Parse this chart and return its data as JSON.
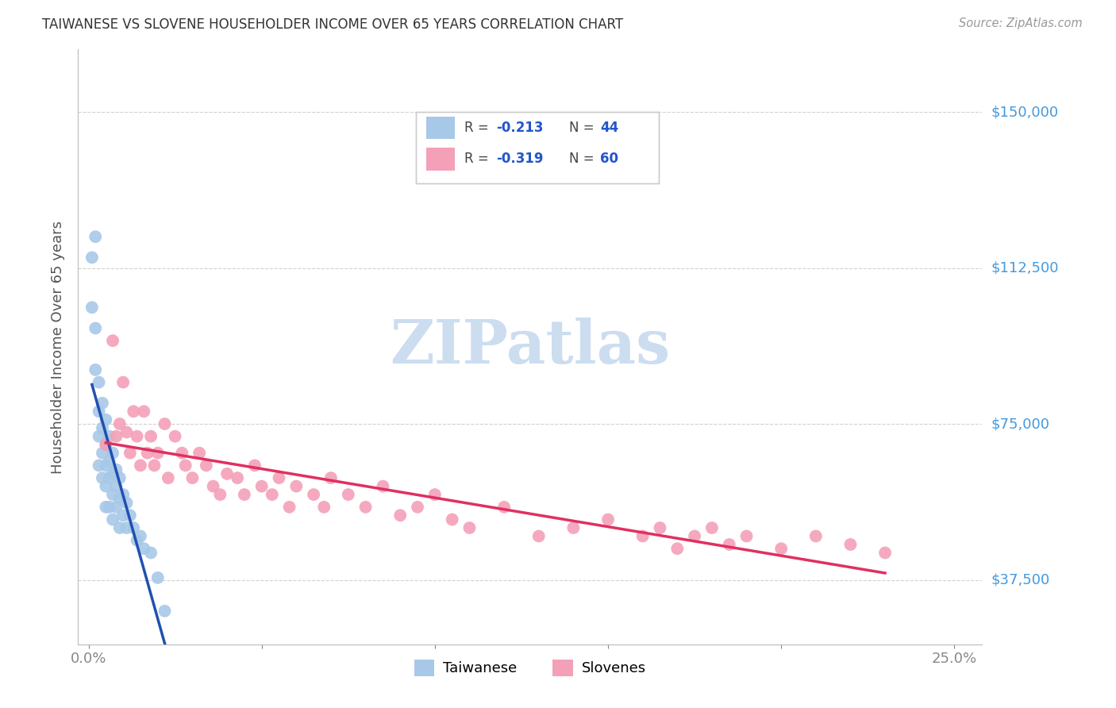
{
  "title": "TAIWANESE VS SLOVENE HOUSEHOLDER INCOME OVER 65 YEARS CORRELATION CHART",
  "source": "Source: ZipAtlas.com",
  "ylabel": "Householder Income Over 65 years",
  "xmin": -0.003,
  "xmax": 0.258,
  "ymin": 22000,
  "ymax": 165000,
  "yticks": [
    37500,
    75000,
    112500,
    150000
  ],
  "ytick_labels": [
    "$37,500",
    "$75,000",
    "$112,500",
    "$150,000"
  ],
  "xtick_positions": [
    0.0,
    0.05,
    0.1,
    0.15,
    0.2,
    0.25
  ],
  "xtick_labels": [
    "0.0%",
    "",
    "",
    "",
    "",
    "25.0%"
  ],
  "taiwanese_R": -0.213,
  "taiwanese_N": 44,
  "slovene_R": -0.319,
  "slovene_N": 60,
  "taiwanese_color": "#a8c8e8",
  "slovene_color": "#f4a0b8",
  "taiwanese_line_color": "#2050b0",
  "slovene_line_color": "#e03060",
  "watermark_text": "ZIPatlas",
  "watermark_color": "#ccddf0",
  "tw_x": [
    0.001,
    0.001,
    0.002,
    0.002,
    0.002,
    0.003,
    0.003,
    0.003,
    0.003,
    0.004,
    0.004,
    0.004,
    0.004,
    0.005,
    0.005,
    0.005,
    0.005,
    0.005,
    0.006,
    0.006,
    0.006,
    0.006,
    0.007,
    0.007,
    0.007,
    0.007,
    0.008,
    0.008,
    0.008,
    0.009,
    0.009,
    0.009,
    0.01,
    0.01,
    0.011,
    0.011,
    0.012,
    0.013,
    0.014,
    0.015,
    0.016,
    0.018,
    0.02,
    0.022
  ],
  "tw_y": [
    115000,
    103000,
    98000,
    88000,
    120000,
    85000,
    78000,
    72000,
    65000,
    80000,
    74000,
    68000,
    62000,
    76000,
    70000,
    65000,
    60000,
    55000,
    72000,
    66000,
    62000,
    55000,
    68000,
    63000,
    58000,
    52000,
    64000,
    60000,
    55000,
    62000,
    57000,
    50000,
    58000,
    53000,
    56000,
    50000,
    53000,
    50000,
    47000,
    48000,
    45000,
    44000,
    38000,
    30000
  ],
  "sl_x": [
    0.005,
    0.007,
    0.008,
    0.009,
    0.01,
    0.011,
    0.012,
    0.013,
    0.014,
    0.015,
    0.016,
    0.017,
    0.018,
    0.019,
    0.02,
    0.022,
    0.023,
    0.025,
    0.027,
    0.028,
    0.03,
    0.032,
    0.034,
    0.036,
    0.038,
    0.04,
    0.043,
    0.045,
    0.048,
    0.05,
    0.053,
    0.055,
    0.058,
    0.06,
    0.065,
    0.068,
    0.07,
    0.075,
    0.08,
    0.085,
    0.09,
    0.095,
    0.1,
    0.105,
    0.11,
    0.12,
    0.13,
    0.14,
    0.15,
    0.16,
    0.165,
    0.17,
    0.175,
    0.18,
    0.185,
    0.19,
    0.2,
    0.21,
    0.22,
    0.23
  ],
  "sl_y": [
    70000,
    95000,
    72000,
    75000,
    85000,
    73000,
    68000,
    78000,
    72000,
    65000,
    78000,
    68000,
    72000,
    65000,
    68000,
    75000,
    62000,
    72000,
    68000,
    65000,
    62000,
    68000,
    65000,
    60000,
    58000,
    63000,
    62000,
    58000,
    65000,
    60000,
    58000,
    62000,
    55000,
    60000,
    58000,
    55000,
    62000,
    58000,
    55000,
    60000,
    53000,
    55000,
    58000,
    52000,
    50000,
    55000,
    48000,
    50000,
    52000,
    48000,
    50000,
    45000,
    48000,
    50000,
    46000,
    48000,
    45000,
    48000,
    46000,
    44000
  ]
}
